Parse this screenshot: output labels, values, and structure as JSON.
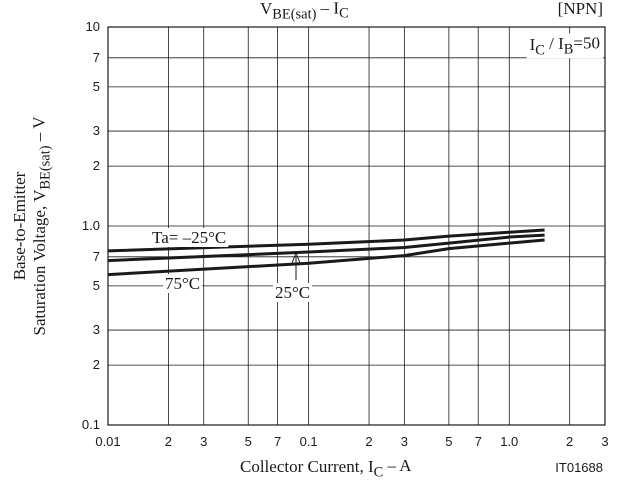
{
  "chart_data": {
    "type": "line",
    "title": [
      {
        "text": "V"
      },
      {
        "text": "BE(sat)",
        "sub": true
      },
      {
        "text": "  –  I"
      },
      {
        "text": "C",
        "sub": true
      }
    ],
    "tag": "[NPN]",
    "code": "IT01688",
    "annotation": [
      {
        "text": "I"
      },
      {
        "text": "C",
        "sub": true
      },
      {
        "text": " / I"
      },
      {
        "text": "B",
        "sub": true
      },
      {
        "text": "=50"
      }
    ],
    "x_label": [
      {
        "text": "Collector Current, I"
      },
      {
        "text": "C",
        "sub": true
      },
      {
        "text": "  –  A"
      }
    ],
    "y_label": [
      [
        {
          "text": "Base-to-Emitter"
        }
      ],
      [
        {
          "text": "Saturation Voltage, V"
        },
        {
          "text": "BE(sat)",
          "sub": true
        },
        {
          "text": "  –  V"
        }
      ]
    ],
    "x": [
      0.01,
      0.1,
      0.3,
      0.5,
      1,
      1.5
    ],
    "series": [
      {
        "name": "Ta= –25°C",
        "color": "#1a1a1a",
        "values": [
          0.75,
          0.81,
          0.85,
          0.89,
          0.93,
          0.955
        ]
      },
      {
        "name": "25°C",
        "color": "#1a1a1a",
        "values": [
          0.67,
          0.74,
          0.78,
          0.82,
          0.88,
          0.9
        ]
      },
      {
        "name": "75°C",
        "color": "#1a1a1a",
        "values": [
          0.57,
          0.65,
          0.71,
          0.77,
          0.82,
          0.85
        ]
      }
    ],
    "xlim": [
      0.01,
      3
    ],
    "ylim": [
      0.1,
      10
    ],
    "x_log": true,
    "y_log": true,
    "grid": true,
    "xticks": [
      0.01,
      {
        "value": 0.02,
        "label": "2"
      },
      {
        "value": 0.03,
        "label": "3"
      },
      {
        "value": 0.05,
        "label": "5"
      },
      {
        "value": 0.07,
        "label": "7"
      },
      0.1,
      {
        "value": 0.2,
        "label": "2"
      },
      {
        "value": 0.3,
        "label": "3"
      },
      {
        "value": 0.5,
        "label": "5"
      },
      {
        "value": 0.7,
        "label": "7"
      },
      {
        "value": 1,
        "label": "1.0"
      },
      {
        "value": 2,
        "label": "2"
      },
      {
        "value": 3,
        "label": "3"
      }
    ],
    "yticks": [
      0.1,
      {
        "value": 0.2,
        "label": "2"
      },
      {
        "value": 0.3,
        "label": "3"
      },
      {
        "value": 0.5,
        "label": "5"
      },
      {
        "value": 0.7,
        "label": "7"
      },
      {
        "value": 1,
        "label": "1.0"
      },
      {
        "value": 2,
        "label": "2"
      },
      {
        "value": 3,
        "label": "3"
      },
      {
        "value": 5,
        "label": "5"
      },
      {
        "value": 7,
        "label": "7"
      },
      10
    ]
  }
}
